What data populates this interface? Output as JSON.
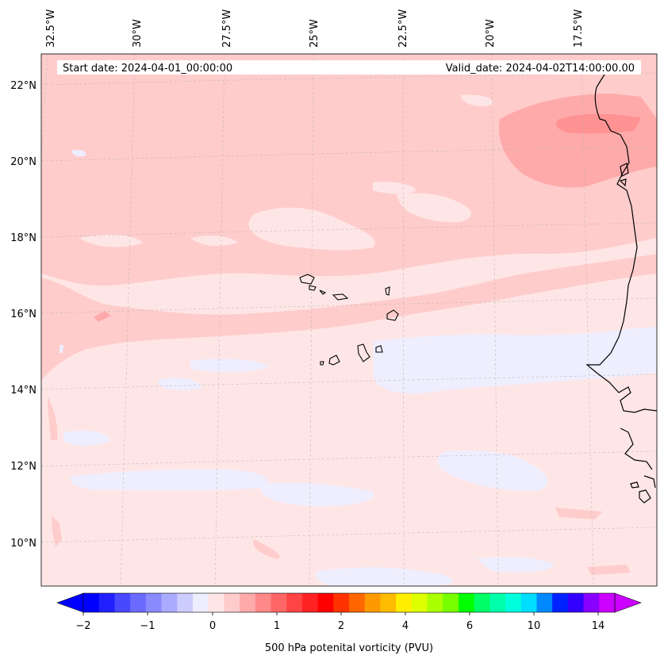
{
  "header": {
    "start_date": "Start date: 2024-04-01_00:00:00",
    "valid_date": "Valid_date: 2024-04-02T14:00:00.00"
  },
  "longitude_labels": [
    "32.5°W",
    "30°W",
    "27.5°W",
    "25°W",
    "22.5°W",
    "20°W",
    "17.5°W"
  ],
  "latitude_labels": [
    "22°N",
    "20°N",
    "18°N",
    "16°N",
    "14°N",
    "12°N",
    "10°N"
  ],
  "colorbar": {
    "tick_labels": [
      "−2",
      "−1",
      "0",
      "1",
      "2",
      "4",
      "6",
      "10",
      "14"
    ],
    "label": "500 hPa potenital vorticity (PVU)",
    "colors": [
      "#0000ff",
      "#2020ff",
      "#4848ff",
      "#6a6aff",
      "#8a8aff",
      "#aaaaff",
      "#ccccff",
      "#eeeeff",
      "#ffe6e6",
      "#ffcccc",
      "#ffaaaa",
      "#ff8888",
      "#ff6666",
      "#ff4444",
      "#ff2222",
      "#ff0000",
      "#ff3300",
      "#ff6600",
      "#ff9900",
      "#ffbb00",
      "#ffee00",
      "#ddff00",
      "#aaff00",
      "#77ff00",
      "#00ff00",
      "#00ff66",
      "#00ffaa",
      "#00ffdd",
      "#00ddff",
      "#0088ff",
      "#0022ff",
      "#3300ff",
      "#8800ff",
      "#cc00ff"
    ],
    "under_color": "#0000ff",
    "over_color": "#cc00ff"
  },
  "colors": {
    "background_field": "#ffe6e6",
    "negative_patch": "#eeeeff",
    "light_pink": "#ffcccc",
    "medium_pink": "#ffaaaa",
    "strong_pink": "#ff8888"
  }
}
